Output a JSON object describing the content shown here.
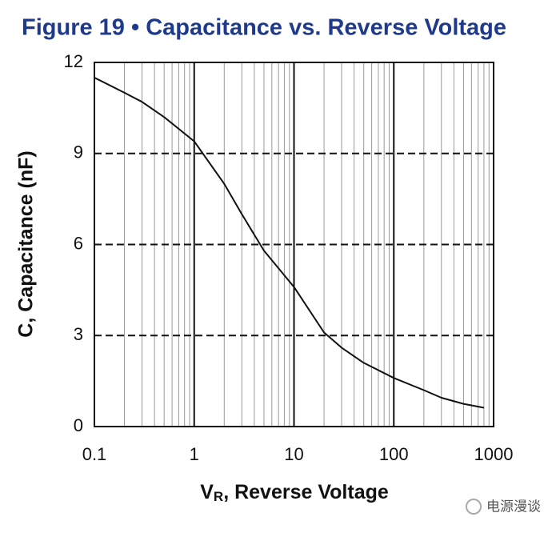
{
  "chart_data": {
    "type": "line",
    "title": "Figure 19 • Capacitance vs. Reverse Voltage",
    "x_label": {
      "main": "V",
      "sub": "R",
      "rest": ", Reverse Voltage"
    },
    "y_label": "C, Capacitance (nF)",
    "x_scale": "log",
    "minor_grid": true,
    "grid": true,
    "x": [
      0.1,
      0.2,
      0.3,
      0.5,
      1,
      2,
      3,
      5,
      10,
      20,
      30,
      50,
      100,
      200,
      300,
      500,
      800
    ],
    "series": [
      {
        "name": "Capacitance",
        "color": "#111111",
        "values": [
          11.5,
          11.0,
          10.7,
          10.2,
          9.4,
          8.0,
          7.0,
          5.8,
          4.6,
          3.1,
          2.6,
          2.1,
          1.6,
          1.2,
          0.95,
          0.75,
          0.62
        ]
      }
    ],
    "xlim": [
      0.1,
      1000
    ],
    "ylim": [
      0,
      12
    ],
    "xticks": [
      0.1,
      1,
      10,
      100,
      1000
    ],
    "yticks": [
      0,
      3,
      6,
      9,
      12
    ],
    "watermark": "电源漫谈"
  }
}
